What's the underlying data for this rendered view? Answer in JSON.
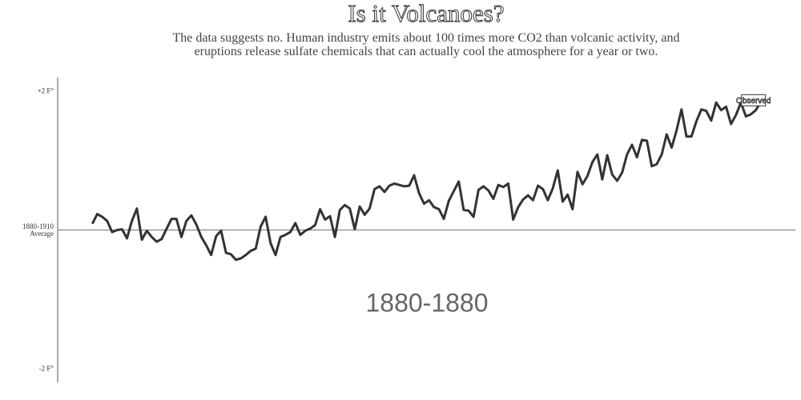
{
  "chart_data": {
    "type": "line",
    "title": "Is it Volcanoes?",
    "subtitle": "The data suggests no. Human industry emits about 100 times more CO2 than volcanic activity, and eruptions release sulfate chemicals that can actually cool the atmosphere for a year or two.",
    "annotation": "1880-1880",
    "x": [
      1880,
      1881,
      1882,
      1883,
      1884,
      1885,
      1886,
      1887,
      1888,
      1889,
      1890,
      1891,
      1892,
      1893,
      1894,
      1895,
      1896,
      1897,
      1898,
      1899,
      1900,
      1901,
      1902,
      1903,
      1904,
      1905,
      1906,
      1907,
      1908,
      1909,
      1910,
      1911,
      1912,
      1913,
      1914,
      1915,
      1916,
      1917,
      1918,
      1919,
      1920,
      1921,
      1922,
      1923,
      1924,
      1925,
      1926,
      1927,
      1928,
      1929,
      1930,
      1931,
      1932,
      1933,
      1934,
      1935,
      1936,
      1937,
      1938,
      1939,
      1940,
      1941,
      1942,
      1943,
      1944,
      1945,
      1946,
      1947,
      1948,
      1949,
      1950,
      1951,
      1952,
      1953,
      1954,
      1955,
      1956,
      1957,
      1958,
      1959,
      1960,
      1961,
      1962,
      1963,
      1964,
      1965,
      1966,
      1967,
      1968,
      1969,
      1970,
      1971,
      1972,
      1973,
      1974,
      1975,
      1976,
      1977,
      1978,
      1979,
      1980,
      1981,
      1982,
      1983,
      1984,
      1985,
      1986,
      1987,
      1988,
      1989,
      1990,
      1991,
      1992,
      1993,
      1994,
      1995,
      1996,
      1997,
      1998,
      1999,
      2000,
      2001,
      2002,
      2003,
      2004,
      2005,
      2006,
      2007,
      2008,
      2009,
      2010,
      2011,
      2012,
      2013,
      2014,
      2015
    ],
    "series": [
      {
        "name": "Observed",
        "color": "#333333",
        "values": [
          0.09,
          0.23,
          0.19,
          0.13,
          -0.03,
          0,
          0.01,
          -0.12,
          0.13,
          0.31,
          -0.14,
          -0.01,
          -0.1,
          -0.17,
          -0.13,
          0.02,
          0.16,
          0.16,
          -0.1,
          0.13,
          0.21,
          0.08,
          -0.1,
          -0.22,
          -0.36,
          -0.09,
          -0.01,
          -0.33,
          -0.35,
          -0.43,
          -0.41,
          -0.36,
          -0.3,
          -0.27,
          0.05,
          0.19,
          -0.19,
          -0.36,
          -0.1,
          -0.07,
          -0.03,
          0.1,
          -0.07,
          -0.01,
          0.02,
          0.07,
          0.3,
          0.15,
          0.2,
          -0.1,
          0.29,
          0.36,
          0.31,
          0.01,
          0.34,
          0.22,
          0.31,
          0.59,
          0.63,
          0.55,
          0.64,
          0.67,
          0.65,
          0.63,
          0.64,
          0.79,
          0.53,
          0.38,
          0.43,
          0.33,
          0.3,
          0.16,
          0.42,
          0.56,
          0.7,
          0.29,
          0.28,
          0.19,
          0.58,
          0.63,
          0.57,
          0.45,
          0.65,
          0.62,
          0.67,
          0.15,
          0.33,
          0.44,
          0.5,
          0.43,
          0.64,
          0.59,
          0.43,
          0.6,
          0.86,
          0.41,
          0.51,
          0.3,
          0.84,
          0.66,
          0.78,
          0.98,
          1.09,
          0.73,
          1.08,
          0.8,
          0.71,
          0.83,
          1.09,
          1.23,
          1.05,
          1.3,
          1.29,
          0.92,
          0.95,
          1.09,
          1.38,
          1.19,
          1.44,
          1.74,
          1.35,
          1.35,
          1.57,
          1.74,
          1.72,
          1.58,
          1.84,
          1.73,
          1.78,
          1.53,
          1.66,
          1.84,
          1.64,
          1.67,
          1.73,
          1.85
        ]
      }
    ],
    "xlim": [
      1873,
      2022
    ],
    "ylim": [
      -2.2,
      2.2
    ],
    "yticks": [
      {
        "value": 2,
        "label": "+2 F°"
      },
      {
        "value": 0,
        "label": "1880-1910 Average"
      },
      {
        "value": -2,
        "label": "-2 F°"
      }
    ]
  }
}
